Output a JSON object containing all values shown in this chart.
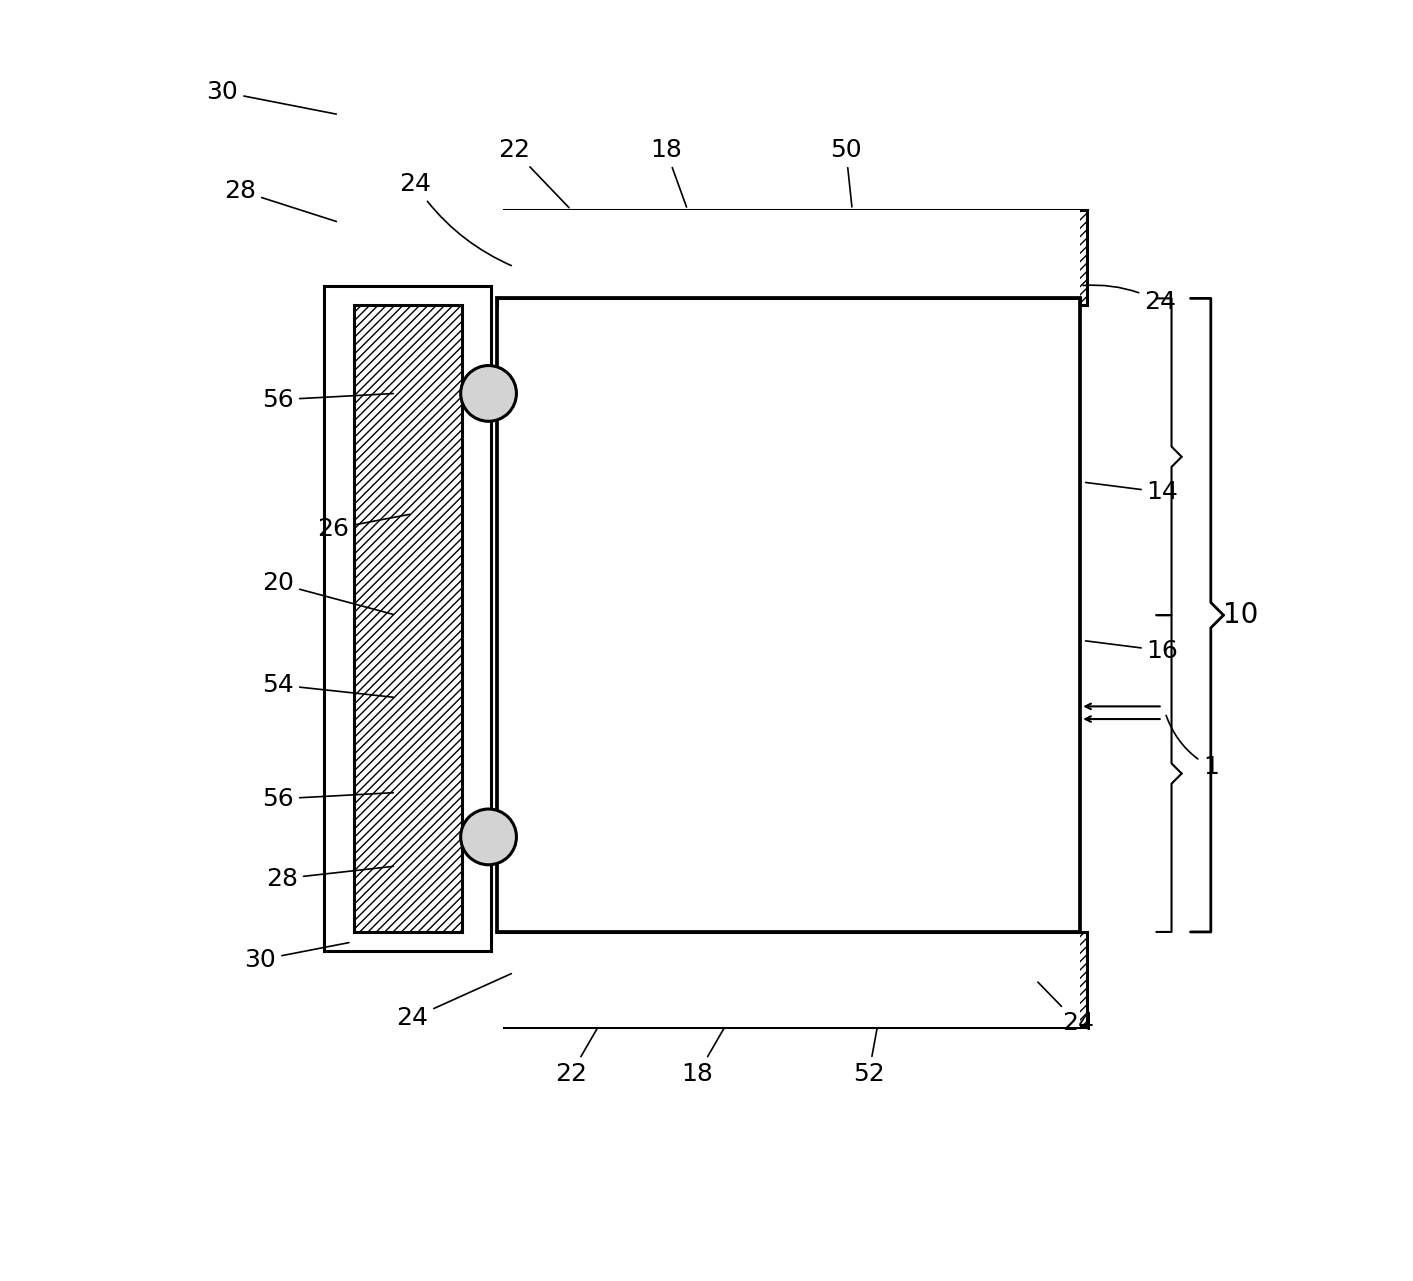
{
  "bg_color": "#ffffff",
  "line_color": "#000000",
  "hatch_color": "#000000",
  "fig_width": 14.13,
  "fig_height": 12.81
}
